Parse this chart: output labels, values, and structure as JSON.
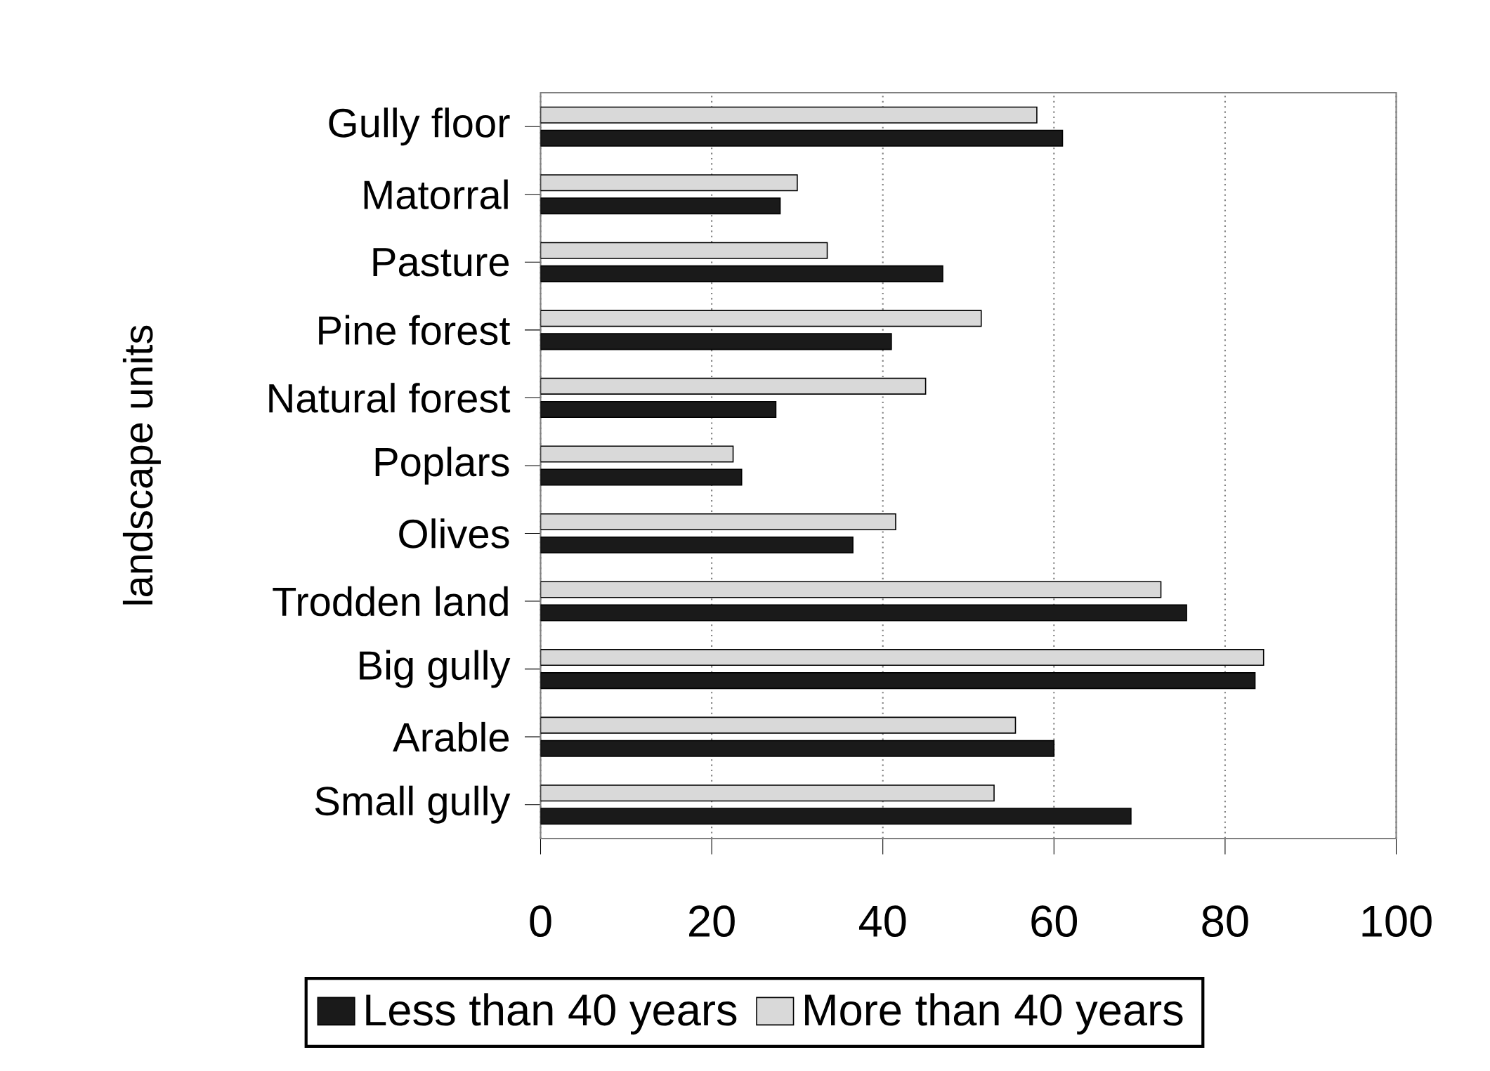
{
  "chart_data": {
    "type": "bar",
    "orientation": "horizontal",
    "ylabel": "landscape units",
    "categories": [
      "Gully floor",
      "Matorral",
      "Pasture",
      "Pine forest",
      "Natural forest",
      "Poplars",
      "Olives",
      "Trodden land",
      "Big gully",
      "Arable",
      "Small gully"
    ],
    "series": [
      {
        "name": "Less than 40 years",
        "color": "#1a1a1a",
        "values": [
          61,
          28,
          47,
          41,
          27.5,
          23.5,
          36.5,
          75.5,
          83.5,
          60,
          69
        ]
      },
      {
        "name": "More than 40 years",
        "color": "#d9d9d9",
        "values": [
          58,
          30,
          33.5,
          51.5,
          45,
          22.5,
          41.5,
          72.5,
          84.5,
          55.5,
          53
        ]
      }
    ],
    "xlim": [
      0,
      100
    ],
    "xticks": [
      0,
      20,
      40,
      60,
      80,
      100
    ],
    "grid": "x",
    "legend": "bottom"
  }
}
